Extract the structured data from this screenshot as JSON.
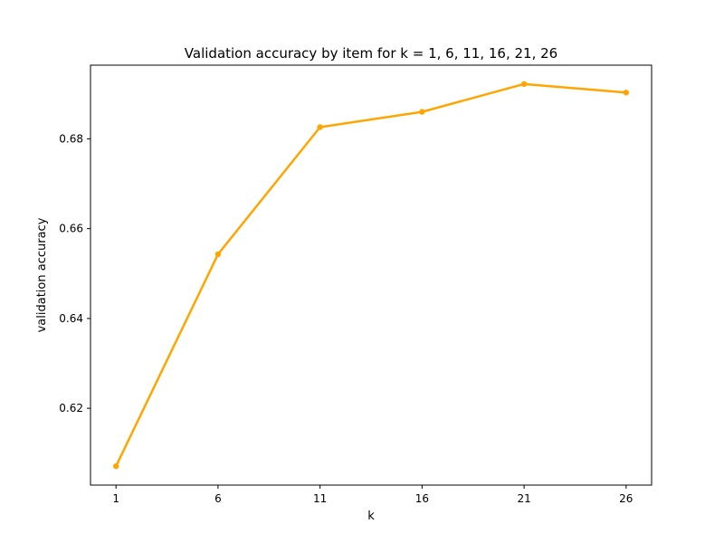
{
  "chart_data": {
    "type": "line",
    "title": "Validation accuracy by item for k = 1, 6, 11, 16, 21, 26",
    "xlabel": "k",
    "ylabel": "validation accuracy",
    "x": [
      1,
      6,
      11,
      16,
      21,
      26
    ],
    "series": [
      {
        "values": [
          0.6071,
          0.6543,
          0.6826,
          0.686,
          0.6922,
          0.6903
        ],
        "color": "#ffa500",
        "marker": "circle"
      }
    ],
    "xticks": [
      1,
      6,
      11,
      16,
      21,
      26
    ],
    "xtick_labels": [
      "1",
      "6",
      "11",
      "16",
      "21",
      "26"
    ],
    "yticks": [
      0.62,
      0.64,
      0.66,
      0.68
    ],
    "ytick_labels": [
      "0.62",
      "0.64",
      "0.66",
      "0.68"
    ],
    "xlim": [
      -0.25,
      27.25
    ],
    "ylim": [
      0.6029,
      0.6964
    ],
    "grid": false,
    "legend": "none"
  }
}
